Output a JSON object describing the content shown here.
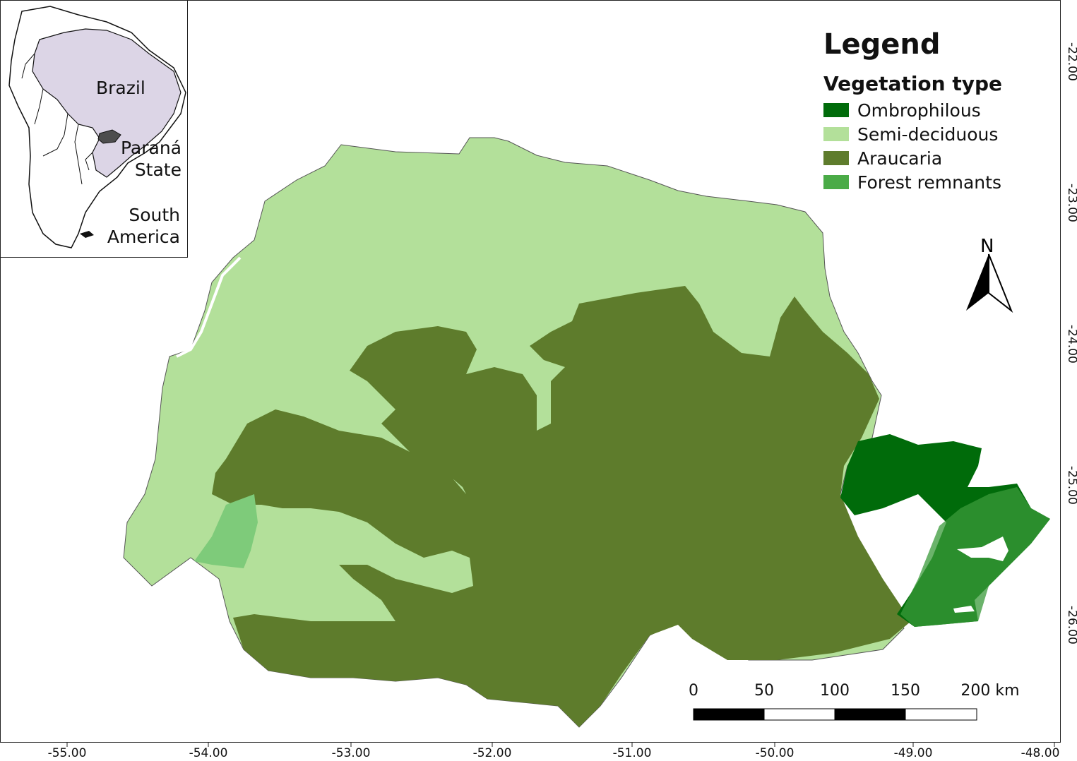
{
  "legend": {
    "title": "Legend",
    "subtitle": "Vegetation type",
    "items": [
      {
        "label": "Ombrophilous",
        "color": "#006b0a"
      },
      {
        "label": "Semi-deciduous",
        "color": "#b3e09a"
      },
      {
        "label": "Araucaria",
        "color": "#5e7c2c"
      },
      {
        "label": "Forest remnants",
        "color": "#4aab47"
      }
    ]
  },
  "north_arrow": {
    "label": "N",
    "icon": "north-arrow-icon"
  },
  "scale_bar": {
    "labels": [
      "0",
      "50",
      "100",
      "150",
      "200 km"
    ]
  },
  "axes": {
    "longitude_labels": [
      "-55.00",
      "-54.00",
      "-53.00",
      "-52.00",
      "-51.00",
      "-50.00",
      "-49.00",
      "-48.00"
    ],
    "latitude_labels": [
      "-22.00",
      "-23.00",
      "-24.00",
      "-25.00",
      "-26.00"
    ]
  },
  "inset": {
    "country": "Brazil",
    "state_line1": "Paraná",
    "state_line2": "State",
    "continent_line1": "South",
    "continent_line2": "America",
    "colors": {
      "brazil": "#dcd5e6",
      "parana": "#4d4d4d",
      "land_outline": "#111111"
    }
  }
}
